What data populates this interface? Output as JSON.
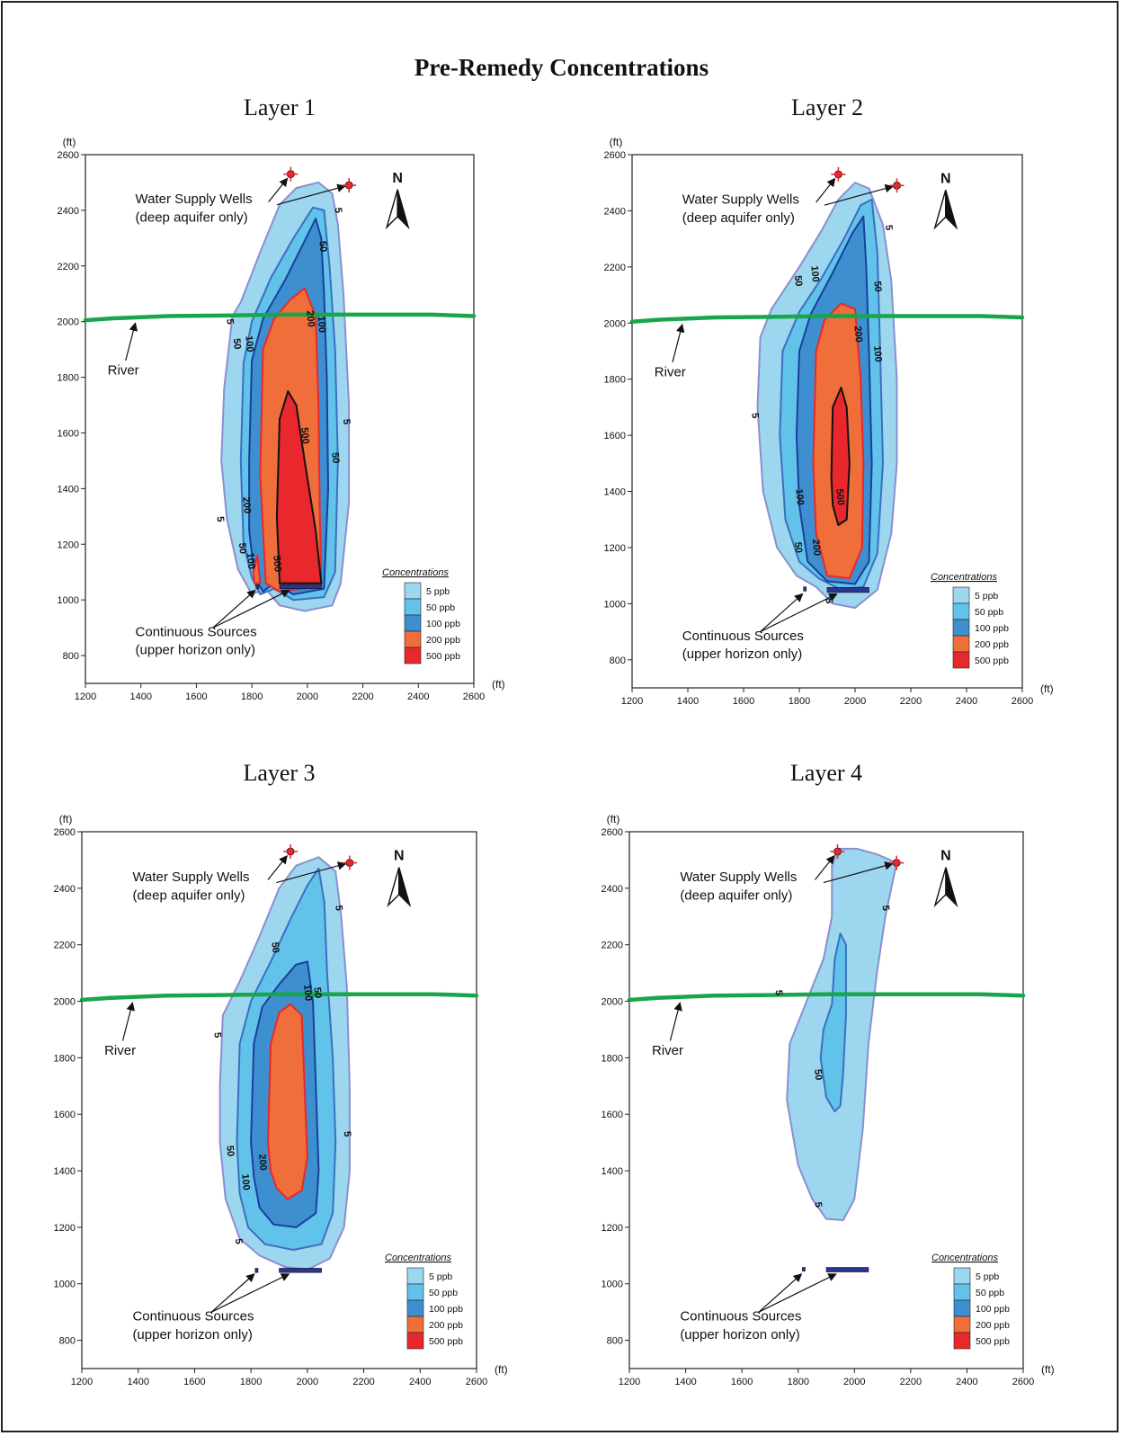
{
  "title": "Pre-Remedy Concentrations",
  "axes": {
    "unit": "(ft)",
    "x_ticks": [
      "1200",
      "1400",
      "1600",
      "1800",
      "2000",
      "2200",
      "2400",
      "2600"
    ],
    "y_ticks": [
      "800",
      "1000",
      "1200",
      "1400",
      "1600",
      "1800",
      "2000",
      "2200",
      "2400",
      "2600"
    ],
    "x_range": [
      1200,
      2600
    ],
    "y_range": [
      700,
      2600
    ]
  },
  "annotations": {
    "wells_line1": "Water Supply Wells",
    "wells_line2": "(deep aquifer only)",
    "sources_line1": "Continuous Sources",
    "sources_line2": "(upper horizon only)",
    "river": "River",
    "north": "N"
  },
  "legend": {
    "title": "Concentrations",
    "items": [
      {
        "label": "5 ppb",
        "color": "#9dd6ef"
      },
      {
        "label": "50 ppb",
        "color": "#62c3ea"
      },
      {
        "label": "100 ppb",
        "color": "#3d8fd0"
      },
      {
        "label": "200 ppb",
        "color": "#ef6e3a"
      },
      {
        "label": "500 ppb",
        "color": "#e8282c"
      }
    ]
  },
  "colors": {
    "c5": "#9dd6ef",
    "c50": "#62c3ea",
    "c100": "#3d8fd0",
    "c200": "#ef6e3a",
    "c500": "#e8282c",
    "river": "#19a64a",
    "well": "#e8282c",
    "source": "#2a3590",
    "outline5": "#8a8fd0"
  },
  "panels": [
    {
      "title": "Layer 1",
      "wells": [
        {
          "x": 1940,
          "y": 2530
        },
        {
          "x": 2150,
          "y": 2490
        }
      ],
      "sources": [
        {
          "x1": 1815,
          "x2": 1825,
          "y1": 1040,
          "y2": 1055
        },
        {
          "x1": 1900,
          "x2": 2050,
          "y1": 1040,
          "y2": 1055
        }
      ],
      "contour_labels": [
        {
          "text": "5",
          "x": 2110,
          "y": 2400
        },
        {
          "text": "5",
          "x": 1720,
          "y": 2000
        },
        {
          "text": "5",
          "x": 2140,
          "y": 1640
        },
        {
          "text": "5",
          "x": 1685,
          "y": 1290
        },
        {
          "text": "50",
          "x": 2055,
          "y": 2270
        },
        {
          "text": "50",
          "x": 1745,
          "y": 1920
        },
        {
          "text": "50",
          "x": 2100,
          "y": 1510
        },
        {
          "text": "50",
          "x": 1765,
          "y": 1185
        },
        {
          "text": "100",
          "x": 2050,
          "y": 1990
        },
        {
          "text": "100",
          "x": 1790,
          "y": 1920
        },
        {
          "text": "100",
          "x": 1795,
          "y": 1140
        },
        {
          "text": "200",
          "x": 2010,
          "y": 2010
        },
        {
          "text": "200",
          "x": 1780,
          "y": 1340
        },
        {
          "text": "500",
          "x": 1990,
          "y": 1590
        },
        {
          "text": "500",
          "x": 1890,
          "y": 1130
        }
      ]
    },
    {
      "title": "Layer 2",
      "wells": [
        {
          "x": 1940,
          "y": 2530
        },
        {
          "x": 2150,
          "y": 2490
        }
      ],
      "sources": [
        {
          "x1": 1815,
          "x2": 1825,
          "y1": 1045,
          "y2": 1060
        },
        {
          "x1": 1900,
          "x2": 2050,
          "y1": 1040,
          "y2": 1058
        }
      ],
      "contour_labels": [
        {
          "text": "5",
          "x": 2120,
          "y": 2340
        },
        {
          "text": "5",
          "x": 1640,
          "y": 1670
        },
        {
          "text": "5",
          "x": 1905,
          "y": 1010
        },
        {
          "text": "50",
          "x": 2080,
          "y": 2130
        },
        {
          "text": "50",
          "x": 1795,
          "y": 2150
        },
        {
          "text": "50",
          "x": 1795,
          "y": 1200
        },
        {
          "text": "100",
          "x": 1855,
          "y": 2175
        },
        {
          "text": "100",
          "x": 2080,
          "y": 1890
        },
        {
          "text": "100",
          "x": 1800,
          "y": 1380
        },
        {
          "text": "200",
          "x": 2010,
          "y": 1960
        },
        {
          "text": "200",
          "x": 1860,
          "y": 1200
        },
        {
          "text": "500",
          "x": 1945,
          "y": 1380
        }
      ]
    },
    {
      "title": "Layer 3",
      "wells": [
        {
          "x": 1940,
          "y": 2530
        },
        {
          "x": 2150,
          "y": 2490
        }
      ],
      "sources": [
        {
          "x1": 1815,
          "x2": 1825,
          "y1": 1040,
          "y2": 1055
        },
        {
          "x1": 1900,
          "x2": 2050,
          "y1": 1040,
          "y2": 1055
        }
      ],
      "contour_labels": [
        {
          "text": "5",
          "x": 2110,
          "y": 2330
        },
        {
          "text": "5",
          "x": 1680,
          "y": 1880
        },
        {
          "text": "5",
          "x": 2140,
          "y": 1530
        },
        {
          "text": "5",
          "x": 1755,
          "y": 1150
        },
        {
          "text": "50",
          "x": 1885,
          "y": 2190
        },
        {
          "text": "50",
          "x": 2035,
          "y": 2030
        },
        {
          "text": "50",
          "x": 1725,
          "y": 1470
        },
        {
          "text": "100",
          "x": 2000,
          "y": 2030
        },
        {
          "text": "100",
          "x": 1780,
          "y": 1360
        },
        {
          "text": "200",
          "x": 1840,
          "y": 1430
        }
      ]
    },
    {
      "title": "Layer 4",
      "wells": [
        {
          "x": 1940,
          "y": 2530
        },
        {
          "x": 2150,
          "y": 2490
        }
      ],
      "sources": [
        {
          "x1": 1815,
          "x2": 1825,
          "y1": 1045,
          "y2": 1058
        },
        {
          "x1": 1900,
          "x2": 2050,
          "y1": 1042,
          "y2": 1058
        }
      ],
      "contour_labels": [
        {
          "text": "5",
          "x": 2110,
          "y": 2330
        },
        {
          "text": "5",
          "x": 1730,
          "y": 2030
        },
        {
          "text": "5",
          "x": 1870,
          "y": 1280
        },
        {
          "text": "50",
          "x": 1870,
          "y": 1740
        }
      ]
    }
  ],
  "plumes": {
    "layer1": {
      "c5": [
        [
          1700,
          1760
        ],
        [
          1730,
          2020
        ],
        [
          1760,
          2070
        ],
        [
          1830,
          2250
        ],
        [
          1900,
          2420
        ],
        [
          1960,
          2480
        ],
        [
          2040,
          2500
        ],
        [
          2090,
          2460
        ],
        [
          2110,
          2350
        ],
        [
          2130,
          2100
        ],
        [
          2150,
          1700
        ],
        [
          2150,
          1350
        ],
        [
          2120,
          1060
        ],
        [
          2090,
          980
        ],
        [
          1990,
          960
        ],
        [
          1900,
          980
        ],
        [
          1850,
          1040
        ],
        [
          1800,
          1020
        ],
        [
          1750,
          1110
        ],
        [
          1710,
          1290
        ],
        [
          1690,
          1500
        ]
      ],
      "c50": [
        [
          1760,
          1500
        ],
        [
          1770,
          1850
        ],
        [
          1800,
          2000
        ],
        [
          1870,
          2160
        ],
        [
          1950,
          2300
        ],
        [
          2020,
          2410
        ],
        [
          2060,
          2400
        ],
        [
          2080,
          2200
        ],
        [
          2100,
          1900
        ],
        [
          2110,
          1500
        ],
        [
          2100,
          1100
        ],
        [
          2060,
          1010
        ],
        [
          1950,
          1000
        ],
        [
          1880,
          1040
        ],
        [
          1830,
          1020
        ],
        [
          1800,
          1080
        ],
        [
          1770,
          1200
        ]
      ],
      "c100": [
        [
          1790,
          1500
        ],
        [
          1800,
          1860
        ],
        [
          1840,
          2010
        ],
        [
          1920,
          2150
        ],
        [
          1990,
          2290
        ],
        [
          2030,
          2370
        ],
        [
          2050,
          2300
        ],
        [
          2060,
          2100
        ],
        [
          2070,
          1800
        ],
        [
          2075,
          1400
        ],
        [
          2060,
          1040
        ],
        [
          1950,
          1020
        ],
        [
          1880,
          1060
        ],
        [
          1840,
          1030
        ],
        [
          1810,
          1080
        ],
        [
          1790,
          1250
        ]
      ],
      "c200": [
        [
          1830,
          1450
        ],
        [
          1840,
          1900
        ],
        [
          1880,
          2010
        ],
        [
          1940,
          2080
        ],
        [
          1990,
          2120
        ],
        [
          2030,
          2020
        ],
        [
          2040,
          1700
        ],
        [
          2045,
          1300
        ],
        [
          2050,
          1050
        ],
        [
          1900,
          1030
        ],
        [
          1850,
          1060
        ]
      ],
      "c200b": [
        [
          1810,
          1060
        ],
        [
          1830,
          1060
        ],
        [
          1820,
          1160
        ],
        [
          1805,
          1100
        ]
      ],
      "c500": [
        [
          1890,
          1300
        ],
        [
          1900,
          1650
        ],
        [
          1930,
          1750
        ],
        [
          1960,
          1700
        ],
        [
          1990,
          1500
        ],
        [
          2030,
          1250
        ],
        [
          2050,
          1060
        ],
        [
          1900,
          1060
        ]
      ]
    },
    "layer2": {
      "c5": [
        [
          1650,
          1700
        ],
        [
          1660,
          1950
        ],
        [
          1700,
          2050
        ],
        [
          1800,
          2200
        ],
        [
          1880,
          2330
        ],
        [
          1940,
          2440
        ],
        [
          2000,
          2500
        ],
        [
          2050,
          2480
        ],
        [
          2100,
          2350
        ],
        [
          2130,
          2150
        ],
        [
          2150,
          1800
        ],
        [
          2150,
          1500
        ],
        [
          2130,
          1250
        ],
        [
          2080,
          1050
        ],
        [
          2000,
          985
        ],
        [
          1920,
          1000
        ],
        [
          1860,
          1060
        ],
        [
          1790,
          1100
        ],
        [
          1720,
          1200
        ],
        [
          1670,
          1400
        ]
      ],
      "c50": [
        [
          1730,
          1600
        ],
        [
          1740,
          1900
        ],
        [
          1800,
          2040
        ],
        [
          1880,
          2160
        ],
        [
          1960,
          2300
        ],
        [
          2020,
          2420
        ],
        [
          2060,
          2440
        ],
        [
          2080,
          2250
        ],
        [
          2090,
          1900
        ],
        [
          2100,
          1500
        ],
        [
          2080,
          1180
        ],
        [
          2030,
          1060
        ],
        [
          1950,
          1050
        ],
        [
          1870,
          1090
        ],
        [
          1800,
          1150
        ],
        [
          1750,
          1300
        ]
      ],
      "c100": [
        [
          1790,
          1600
        ],
        [
          1800,
          1900
        ],
        [
          1840,
          2030
        ],
        [
          1920,
          2180
        ],
        [
          1990,
          2320
        ],
        [
          2030,
          2380
        ],
        [
          2040,
          2200
        ],
        [
          2050,
          1900
        ],
        [
          2060,
          1500
        ],
        [
          2050,
          1150
        ],
        [
          2000,
          1070
        ],
        [
          1900,
          1080
        ],
        [
          1830,
          1150
        ],
        [
          1800,
          1350
        ]
      ],
      "c200": [
        [
          1850,
          1500
        ],
        [
          1860,
          1900
        ],
        [
          1890,
          2010
        ],
        [
          1950,
          2070
        ],
        [
          2000,
          2050
        ],
        [
          2020,
          1800
        ],
        [
          2030,
          1500
        ],
        [
          2025,
          1200
        ],
        [
          1980,
          1090
        ],
        [
          1900,
          1100
        ],
        [
          1860,
          1250
        ]
      ],
      "c500": [
        [
          1915,
          1450
        ],
        [
          1920,
          1700
        ],
        [
          1950,
          1770
        ],
        [
          1970,
          1700
        ],
        [
          1980,
          1500
        ],
        [
          1970,
          1300
        ],
        [
          1940,
          1280
        ],
        [
          1920,
          1350
        ]
      ]
    },
    "layer3": {
      "c5": [
        [
          1690,
          1700
        ],
        [
          1700,
          1950
        ],
        [
          1760,
          2070
        ],
        [
          1830,
          2230
        ],
        [
          1900,
          2400
        ],
        [
          1960,
          2480
        ],
        [
          2040,
          2510
        ],
        [
          2100,
          2460
        ],
        [
          2120,
          2300
        ],
        [
          2140,
          2050
        ],
        [
          2150,
          1700
        ],
        [
          2150,
          1400
        ],
        [
          2130,
          1200
        ],
        [
          2080,
          1090
        ],
        [
          2000,
          1050
        ],
        [
          1920,
          1060
        ],
        [
          1830,
          1100
        ],
        [
          1760,
          1160
        ],
        [
          1710,
          1300
        ],
        [
          1690,
          1500
        ]
      ],
      "c50": [
        [
          1750,
          1500
        ],
        [
          1760,
          1850
        ],
        [
          1800,
          2000
        ],
        [
          1870,
          2140
        ],
        [
          1940,
          2290
        ],
        [
          2000,
          2410
        ],
        [
          2040,
          2470
        ],
        [
          2060,
          2350
        ],
        [
          2070,
          2100
        ],
        [
          2090,
          1800
        ],
        [
          2100,
          1500
        ],
        [
          2090,
          1250
        ],
        [
          2050,
          1140
        ],
        [
          1950,
          1120
        ],
        [
          1850,
          1140
        ],
        [
          1790,
          1200
        ],
        [
          1760,
          1320
        ]
      ],
      "c100": [
        [
          1800,
          1500
        ],
        [
          1810,
          1850
        ],
        [
          1840,
          1980
        ],
        [
          1900,
          2060
        ],
        [
          1960,
          2130
        ],
        [
          2000,
          2140
        ],
        [
          2020,
          2000
        ],
        [
          2030,
          1700
        ],
        [
          2040,
          1400
        ],
        [
          2030,
          1250
        ],
        [
          1960,
          1200
        ],
        [
          1880,
          1210
        ],
        [
          1830,
          1270
        ],
        [
          1810,
          1380
        ]
      ],
      "c200": [
        [
          1860,
          1500
        ],
        [
          1870,
          1850
        ],
        [
          1900,
          1960
        ],
        [
          1940,
          1990
        ],
        [
          1980,
          1950
        ],
        [
          1990,
          1700
        ],
        [
          2000,
          1450
        ],
        [
          1980,
          1330
        ],
        [
          1930,
          1300
        ],
        [
          1890,
          1340
        ],
        [
          1870,
          1400
        ]
      ]
    },
    "layer4": {
      "c5": [
        [
          1760,
          1650
        ],
        [
          1770,
          1850
        ],
        [
          1830,
          2000
        ],
        [
          1890,
          2150
        ],
        [
          1920,
          2300
        ],
        [
          1920,
          2480
        ],
        [
          1940,
          2540
        ],
        [
          2010,
          2540
        ],
        [
          2080,
          2520
        ],
        [
          2150,
          2490
        ],
        [
          2110,
          2300
        ],
        [
          2080,
          2100
        ],
        [
          2050,
          1850
        ],
        [
          2030,
          1550
        ],
        [
          2000,
          1300
        ],
        [
          1960,
          1225
        ],
        [
          1900,
          1230
        ],
        [
          1850,
          1300
        ],
        [
          1800,
          1420
        ]
      ],
      "c50": [
        [
          1880,
          1800
        ],
        [
          1890,
          1900
        ],
        [
          1920,
          1990
        ],
        [
          1930,
          2150
        ],
        [
          1950,
          2240
        ],
        [
          1970,
          2200
        ],
        [
          1970,
          1950
        ],
        [
          1960,
          1750
        ],
        [
          1950,
          1630
        ],
        [
          1930,
          1610
        ],
        [
          1900,
          1660
        ]
      ]
    }
  }
}
